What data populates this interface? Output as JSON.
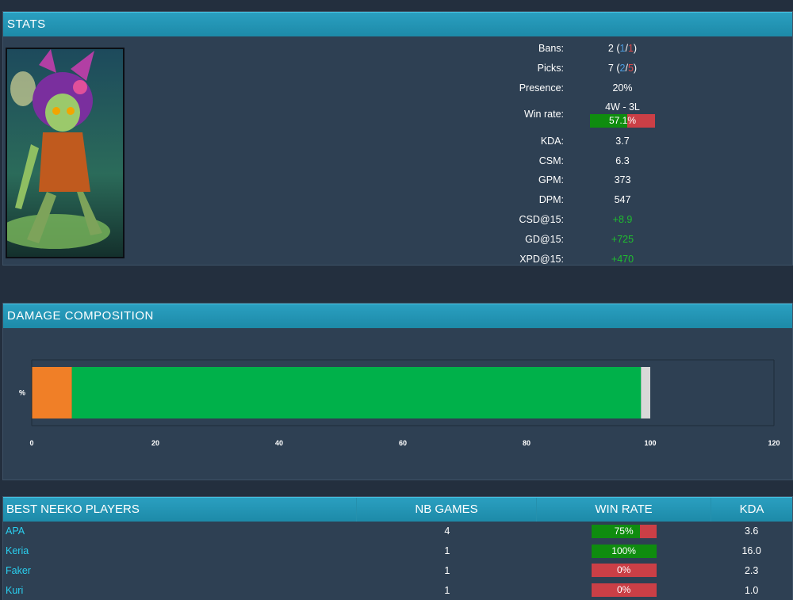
{
  "stats": {
    "title": "STATS",
    "rows": [
      {
        "label": "Bans:",
        "value": "2"
      },
      {
        "label": "Picks:",
        "value": "7"
      },
      {
        "label": "Presence:",
        "value": "20%"
      },
      {
        "label": "Win rate:",
        "value": "4W - 3L"
      },
      {
        "label": "KDA:",
        "value": "3.7"
      },
      {
        "label": "CSM:",
        "value": "6.3"
      },
      {
        "label": "GPM:",
        "value": "373"
      },
      {
        "label": "DPM:",
        "value": "547"
      },
      {
        "label": "CSD@15:",
        "value": "+8.9"
      },
      {
        "label": "GD@15:",
        "value": "+725"
      },
      {
        "label": "XPD@15:",
        "value": "+470"
      }
    ],
    "bans_blue": "1",
    "bans_red": "1",
    "picks_blue": "2",
    "picks_red": "5",
    "winrate_pct": "57.1%",
    "winrate_fraction": 0.571
  },
  "damage": {
    "title": "DAMAGE COMPOSITION"
  },
  "chart_data": {
    "type": "bar",
    "orientation": "horizontal-stacked",
    "categories": [
      "%"
    ],
    "series": [
      {
        "values": [
          6.5
        ],
        "color": "#f07f27"
      },
      {
        "values": [
          92
        ],
        "color": "#00b14a"
      },
      {
        "values": [
          1.5
        ],
        "color": "#d8d8d8"
      }
    ],
    "xlim": [
      0,
      120
    ],
    "xticks": [
      "0",
      "20",
      "40",
      "60",
      "80",
      "100",
      "120"
    ],
    "ylabel": "%"
  },
  "players": {
    "headers": [
      "BEST NEEKO PLAYERS",
      "NB GAMES",
      "WIN RATE",
      "KDA"
    ],
    "rows": [
      {
        "name": "APA",
        "games": "4",
        "winrate": "75%",
        "winrate_fraction": 0.75,
        "kda": "3.6"
      },
      {
        "name": "Keria",
        "games": "1",
        "winrate": "100%",
        "winrate_fraction": 1.0,
        "kda": "16.0"
      },
      {
        "name": "Faker",
        "games": "1",
        "winrate": "0%",
        "winrate_fraction": 0,
        "kda": "2.3"
      },
      {
        "name": "Kuri",
        "games": "1",
        "winrate": "0%",
        "winrate_fraction": 0,
        "kda": "1.0"
      }
    ]
  }
}
